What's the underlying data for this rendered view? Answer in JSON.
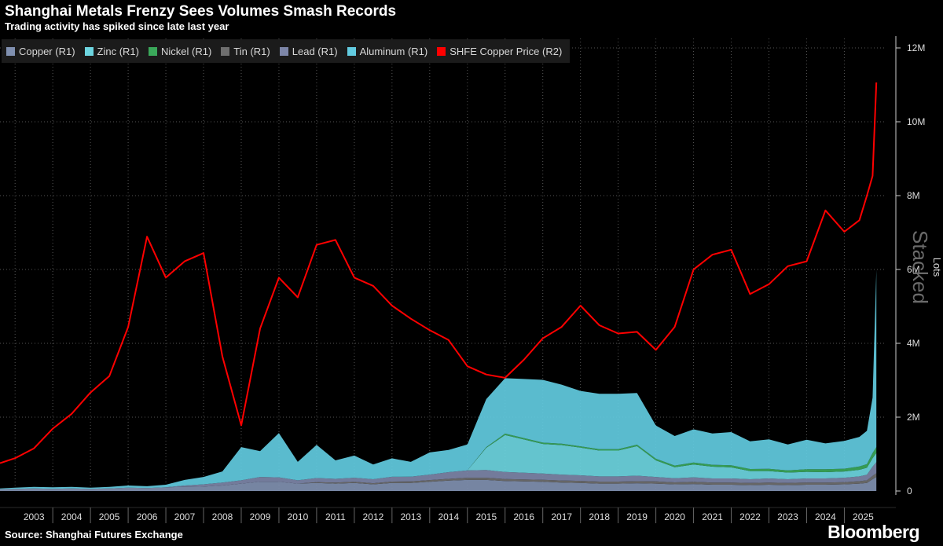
{
  "title": "Shanghai Metals Frenzy Sees Volumes Smash Records",
  "subtitle": "Trading activity has spiked since late last year",
  "source": "Source: Shanghai Futures Exchange",
  "brand": "Bloomberg",
  "stacked_label": "Stacked",
  "colors": {
    "copper": "#8090b0",
    "zinc": "#6dd5e0",
    "nickel": "#3aa85a",
    "tin": "#6f6f6f",
    "lead": "#7d86a8",
    "aluminum": "#62cbe0",
    "price": "#ff0000",
    "axis": "#cccccc",
    "grid": "#555555"
  },
  "legend": [
    {
      "label": "Copper (R1)",
      "color": "#8090b0"
    },
    {
      "label": "Zinc (R1)",
      "color": "#6dd5e0"
    },
    {
      "label": "Nickel (R1)",
      "color": "#3aa85a"
    },
    {
      "label": "Tin (R1)",
      "color": "#6f6f6f"
    },
    {
      "label": "Lead (R1)",
      "color": "#7d86a8"
    },
    {
      "label": "Aluminum (R1)",
      "color": "#62cbe0"
    },
    {
      "label": "SHFE Copper Price (R2)",
      "color": "#ff0000"
    }
  ],
  "chart_data": {
    "type": "area",
    "stacked": true,
    "title": "Shanghai Metals Frenzy Sees Volumes Smash Records",
    "ylabel": "Lots",
    "ylim": [
      0,
      12000000
    ],
    "y_ticks": [
      0,
      2000000,
      4000000,
      6000000,
      8000000,
      10000000,
      12000000
    ],
    "y_tick_labels": [
      "0",
      "2M",
      "4M",
      "6M",
      "8M",
      "10M",
      "12M"
    ],
    "x_range": [
      2002.6,
      2025.95
    ],
    "x_tick_labels": [
      "2003",
      "2004",
      "2005",
      "2006",
      "2007",
      "2008",
      "2009",
      "2010",
      "2011",
      "2012",
      "2013",
      "2014",
      "2015",
      "2016",
      "2017",
      "2018",
      "2019",
      "2020",
      "2021",
      "2022",
      "2023",
      "2024",
      "2025"
    ],
    "legend_position": "top-left",
    "x": [
      2002.6,
      2003.0,
      2003.5,
      2004.0,
      2004.5,
      2005.0,
      2005.5,
      2006.0,
      2006.5,
      2007.0,
      2007.5,
      2008.0,
      2008.5,
      2009.0,
      2009.5,
      2010.0,
      2010.5,
      2011.0,
      2011.5,
      2012.0,
      2012.5,
      2013.0,
      2013.5,
      2014.0,
      2014.5,
      2015.0,
      2015.5,
      2016.0,
      2016.5,
      2017.0,
      2017.5,
      2018.0,
      2018.5,
      2019.0,
      2019.5,
      2020.0,
      2020.5,
      2021.0,
      2021.5,
      2022.0,
      2022.5,
      2023.0,
      2023.5,
      2024.0,
      2024.5,
      2025.0,
      2025.4,
      2025.6,
      2025.75,
      2025.85
    ],
    "series": [
      {
        "name": "Copper (R1)",
        "values": [
          50000,
          60000,
          70000,
          60000,
          70000,
          60000,
          70000,
          90000,
          80000,
          100000,
          110000,
          120000,
          150000,
          200000,
          250000,
          250000,
          200000,
          220000,
          200000,
          220000,
          180000,
          220000,
          220000,
          250000,
          280000,
          300000,
          300000,
          270000,
          260000,
          250000,
          230000,
          220000,
          200000,
          200000,
          210000,
          200000,
          180000,
          190000,
          170000,
          170000,
          160000,
          170000,
          160000,
          170000,
          170000,
          180000,
          200000,
          220000,
          320000,
          380000
        ]
      },
      {
        "name": "Zinc (R1)",
        "values": [
          0,
          0,
          0,
          0,
          0,
          0,
          0,
          0,
          0,
          0,
          40000,
          60000,
          80000,
          90000,
          130000,
          120000,
          90000,
          110000,
          100000,
          110000,
          110000,
          130000,
          130000,
          150000,
          180000,
          200000,
          210000,
          190000,
          180000,
          170000,
          160000,
          150000,
          140000,
          140000,
          150000,
          120000,
          110000,
          120000,
          110000,
          110000,
          100000,
          110000,
          100000,
          110000,
          110000,
          120000,
          130000,
          150000,
          250000,
          300000
        ]
      },
      {
        "name": "Nickel (R1)",
        "values": [
          0,
          0,
          0,
          0,
          0,
          0,
          0,
          0,
          0,
          0,
          0,
          0,
          0,
          0,
          0,
          0,
          0,
          0,
          0,
          0,
          0,
          0,
          0,
          0,
          0,
          0,
          600000,
          1000000,
          900000,
          800000,
          800000,
          750000,
          700000,
          700000,
          800000,
          450000,
          300000,
          350000,
          320000,
          300000,
          220000,
          200000,
          180000,
          180000,
          170000,
          170000,
          180000,
          190000,
          230000,
          250000
        ]
      },
      {
        "name": "Tin (R1)",
        "values": [
          0,
          0,
          0,
          0,
          0,
          0,
          0,
          0,
          0,
          0,
          0,
          0,
          0,
          0,
          0,
          0,
          0,
          0,
          0,
          0,
          0,
          0,
          0,
          0,
          0,
          0,
          20000,
          40000,
          40000,
          35000,
          35000,
          35000,
          40000,
          40000,
          40000,
          45000,
          45000,
          50000,
          50000,
          55000,
          55000,
          60000,
          60000,
          70000,
          80000,
          75000,
          90000,
          100000,
          140000,
          160000
        ]
      },
      {
        "name": "Lead (R1)",
        "values": [
          0,
          0,
          0,
          0,
          0,
          0,
          0,
          0,
          0,
          0,
          0,
          0,
          0,
          0,
          0,
          0,
          0,
          20000,
          30000,
          30000,
          30000,
          35000,
          40000,
          45000,
          50000,
          60000,
          60000,
          55000,
          55000,
          55000,
          55000,
          55000,
          55000,
          55000,
          55000,
          60000,
          55000,
          60000,
          60000,
          60000,
          60000,
          60000,
          60000,
          60000,
          60000,
          60000,
          65000,
          70000,
          90000,
          100000
        ]
      },
      {
        "name": "Aluminum (R1)",
        "values": [
          20000,
          30000,
          40000,
          40000,
          40000,
          30000,
          40000,
          60000,
          50000,
          70000,
          150000,
          200000,
          300000,
          900000,
          700000,
          1200000,
          500000,
          900000,
          500000,
          600000,
          400000,
          500000,
          400000,
          600000,
          600000,
          700000,
          1300000,
          1500000,
          1600000,
          1700000,
          1600000,
          1500000,
          1500000,
          1500000,
          1400000,
          900000,
          800000,
          900000,
          850000,
          900000,
          750000,
          800000,
          700000,
          800000,
          700000,
          750000,
          800000,
          900000,
          1500000,
          4800000
        ]
      },
      {
        "name": "SHFE Copper Price (R2)",
        "values": [
          17000,
          20000,
          26000,
          38000,
          47000,
          60000,
          70000,
          100000,
          155000,
          130000,
          140000,
          145000,
          82000,
          40000,
          99000,
          130000,
          118000,
          150000,
          153000,
          130000,
          125000,
          113000,
          105000,
          98000,
          92000,
          76000,
          71000,
          69000,
          80000,
          93000,
          100000,
          113000,
          101000,
          96000,
          97000,
          86000,
          100000,
          135000,
          144000,
          147000,
          120000,
          126000,
          137000,
          140000,
          171000,
          158000,
          165000,
          180000,
          192000,
          249000
        ]
      }
    ],
    "price_axis_hidden": true,
    "price_range_hidden": [
      0,
      270000
    ],
    "annotations": [
      "Stacked"
    ]
  }
}
